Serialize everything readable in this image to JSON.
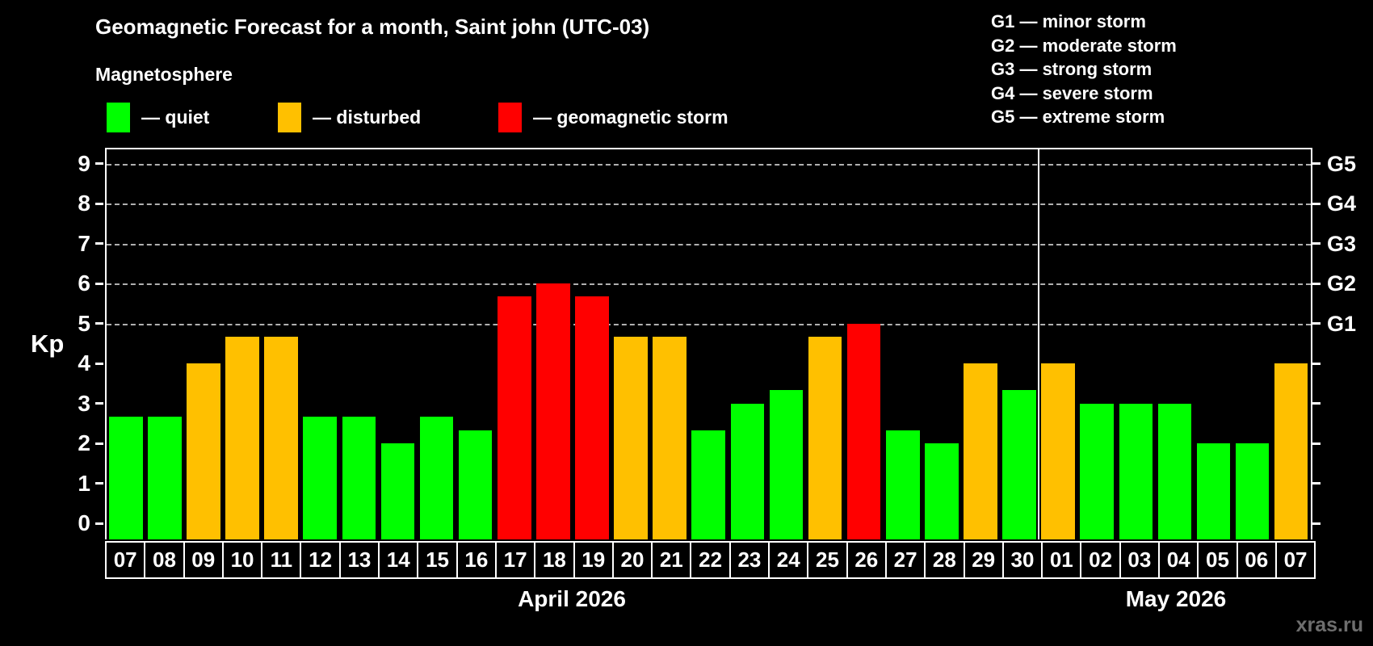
{
  "title": "Geomagnetic Forecast for a month, Saint john (UTC-03)",
  "subtitle": "Magnetosphere",
  "colors": {
    "quiet": "#00ff00",
    "disturbed": "#ffc000",
    "storm": "#ff0000",
    "background": "#000000",
    "text": "#ffffff",
    "gridline": "#b0b0b0",
    "watermark": "#6e6e6e"
  },
  "legend": {
    "items": [
      {
        "status": "quiet",
        "label": "— quiet"
      },
      {
        "status": "disturbed",
        "label": "— disturbed"
      },
      {
        "status": "storm",
        "label": "— geomagnetic storm"
      }
    ]
  },
  "g_scale_legend": {
    "lines": [
      "G1 — minor storm",
      "G2 — moderate storm",
      "G3 — strong storm",
      "G4 — severe storm",
      "G5 — extreme storm"
    ]
  },
  "watermark": "xras.ru",
  "chart_data": {
    "type": "bar",
    "ylabel": "Kp",
    "ylim": [
      0,
      9
    ],
    "y_ticks": [
      0,
      1,
      2,
      3,
      4,
      5,
      6,
      7,
      8,
      9
    ],
    "gridline_kp": [
      5,
      6,
      7,
      8,
      9
    ],
    "grid": "dashed horizontal at Kp 5-9 only",
    "right_axis": [
      {
        "label": "G1",
        "kp": 5
      },
      {
        "label": "G2",
        "kp": 6
      },
      {
        "label": "G3",
        "kp": 7
      },
      {
        "label": "G4",
        "kp": 8
      },
      {
        "label": "G5",
        "kp": 9
      }
    ],
    "months": [
      {
        "label": "April 2026",
        "days": 24
      },
      {
        "label": "May 2026",
        "days": 7
      }
    ],
    "bars": [
      {
        "day": "07",
        "kp": 2.67,
        "status": "quiet"
      },
      {
        "day": "08",
        "kp": 2.67,
        "status": "quiet"
      },
      {
        "day": "09",
        "kp": 4.0,
        "status": "disturbed"
      },
      {
        "day": "10",
        "kp": 4.67,
        "status": "disturbed"
      },
      {
        "day": "11",
        "kp": 4.67,
        "status": "disturbed"
      },
      {
        "day": "12",
        "kp": 2.67,
        "status": "quiet"
      },
      {
        "day": "13",
        "kp": 2.67,
        "status": "quiet"
      },
      {
        "day": "14",
        "kp": 2.0,
        "status": "quiet"
      },
      {
        "day": "15",
        "kp": 2.67,
        "status": "quiet"
      },
      {
        "day": "16",
        "kp": 2.33,
        "status": "quiet"
      },
      {
        "day": "17",
        "kp": 5.67,
        "status": "storm"
      },
      {
        "day": "18",
        "kp": 6.0,
        "status": "storm"
      },
      {
        "day": "19",
        "kp": 5.67,
        "status": "storm"
      },
      {
        "day": "20",
        "kp": 4.67,
        "status": "disturbed"
      },
      {
        "day": "21",
        "kp": 4.67,
        "status": "disturbed"
      },
      {
        "day": "22",
        "kp": 2.33,
        "status": "quiet"
      },
      {
        "day": "23",
        "kp": 3.0,
        "status": "quiet"
      },
      {
        "day": "24",
        "kp": 3.33,
        "status": "quiet"
      },
      {
        "day": "25",
        "kp": 4.67,
        "status": "disturbed"
      },
      {
        "day": "26",
        "kp": 5.0,
        "status": "storm"
      },
      {
        "day": "27",
        "kp": 2.33,
        "status": "quiet"
      },
      {
        "day": "28",
        "kp": 2.0,
        "status": "quiet"
      },
      {
        "day": "29",
        "kp": 4.0,
        "status": "disturbed"
      },
      {
        "day": "30",
        "kp": 3.33,
        "status": "quiet"
      },
      {
        "day": "01",
        "kp": 4.0,
        "status": "disturbed"
      },
      {
        "day": "02",
        "kp": 3.0,
        "status": "quiet"
      },
      {
        "day": "03",
        "kp": 3.0,
        "status": "quiet"
      },
      {
        "day": "04",
        "kp": 3.0,
        "status": "quiet"
      },
      {
        "day": "05",
        "kp": 2.0,
        "status": "quiet"
      },
      {
        "day": "06",
        "kp": 2.0,
        "status": "quiet"
      },
      {
        "day": "07",
        "kp": 4.0,
        "status": "disturbed"
      }
    ]
  }
}
